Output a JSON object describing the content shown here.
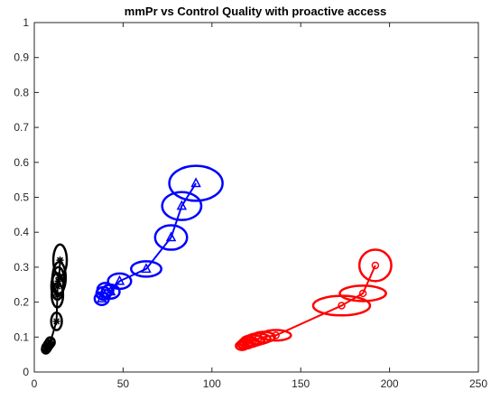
{
  "chart_data": {
    "type": "scatter",
    "title": "mmPr vs Control Quality with proactive access",
    "xlabel": "",
    "ylabel": "",
    "xlim": [
      0,
      250
    ],
    "ylim": [
      0,
      1
    ],
    "xticks": [
      0,
      50,
      100,
      150,
      200,
      250
    ],
    "yticks": [
      0,
      0.1,
      0.2,
      0.3,
      0.4,
      0.5,
      0.6,
      0.7,
      0.8,
      0.9,
      1
    ],
    "xtick_labels": [
      "0",
      "50",
      "100",
      "150",
      "200",
      "250"
    ],
    "ytick_labels": [
      "0",
      "0.1",
      "0.2",
      "0.3",
      "0.4",
      "0.5",
      "0.6",
      "0.7",
      "0.8",
      "0.9",
      "1"
    ],
    "grid": false,
    "box": true,
    "series": [
      {
        "color": "#000000",
        "marker": "asterisk",
        "points": [
          {
            "x": 6.5,
            "y": 0.065,
            "rx": 2.2,
            "ry": 0.012
          },
          {
            "x": 7,
            "y": 0.07,
            "rx": 2.5,
            "ry": 0.013
          },
          {
            "x": 8,
            "y": 0.078,
            "rx": 2.5,
            "ry": 0.013
          },
          {
            "x": 9,
            "y": 0.085,
            "rx": 2.5,
            "ry": 0.014
          },
          {
            "x": 12.5,
            "y": 0.145,
            "rx": 3.0,
            "ry": 0.025
          },
          {
            "x": 13,
            "y": 0.22,
            "rx": 3.2,
            "ry": 0.035
          },
          {
            "x": 13,
            "y": 0.245,
            "rx": 3.4,
            "ry": 0.038
          },
          {
            "x": 13.5,
            "y": 0.26,
            "rx": 3.5,
            "ry": 0.04
          },
          {
            "x": 14,
            "y": 0.27,
            "rx": 3.7,
            "ry": 0.045
          },
          {
            "x": 14.5,
            "y": 0.32,
            "rx": 3.8,
            "ry": 0.045
          }
        ]
      },
      {
        "color": "#0000ff",
        "marker": "triangle",
        "points": [
          {
            "x": 38,
            "y": 0.21,
            "rx": 4.0,
            "ry": 0.018
          },
          {
            "x": 39,
            "y": 0.225,
            "rx": 4.0,
            "ry": 0.018
          },
          {
            "x": 40,
            "y": 0.235,
            "rx": 4.5,
            "ry": 0.02
          },
          {
            "x": 43,
            "y": 0.23,
            "rx": 5.0,
            "ry": 0.02
          },
          {
            "x": 48,
            "y": 0.26,
            "rx": 6.5,
            "ry": 0.022
          },
          {
            "x": 63,
            "y": 0.295,
            "rx": 8.5,
            "ry": 0.022
          },
          {
            "x": 77,
            "y": 0.385,
            "rx": 9.0,
            "ry": 0.035
          },
          {
            "x": 83,
            "y": 0.475,
            "rx": 11.0,
            "ry": 0.04
          },
          {
            "x": 91,
            "y": 0.54,
            "rx": 15.0,
            "ry": 0.05
          }
        ]
      },
      {
        "color": "#ff0000",
        "marker": "circle",
        "points": [
          {
            "x": 117,
            "y": 0.075,
            "rx": 3.5,
            "ry": 0.012
          },
          {
            "x": 119,
            "y": 0.08,
            "rx": 4.5,
            "ry": 0.013
          },
          {
            "x": 121,
            "y": 0.085,
            "rx": 5.5,
            "ry": 0.014
          },
          {
            "x": 123,
            "y": 0.09,
            "rx": 6.5,
            "ry": 0.015
          },
          {
            "x": 126,
            "y": 0.095,
            "rx": 7.0,
            "ry": 0.015
          },
          {
            "x": 129,
            "y": 0.1,
            "rx": 6.5,
            "ry": 0.015
          },
          {
            "x": 136,
            "y": 0.105,
            "rx": 8.5,
            "ry": 0.015
          },
          {
            "x": 173,
            "y": 0.19,
            "rx": 16.0,
            "ry": 0.028
          },
          {
            "x": 185,
            "y": 0.225,
            "rx": 13.0,
            "ry": 0.022
          },
          {
            "x": 192,
            "y": 0.305,
            "rx": 9.0,
            "ry": 0.045
          }
        ]
      }
    ]
  }
}
